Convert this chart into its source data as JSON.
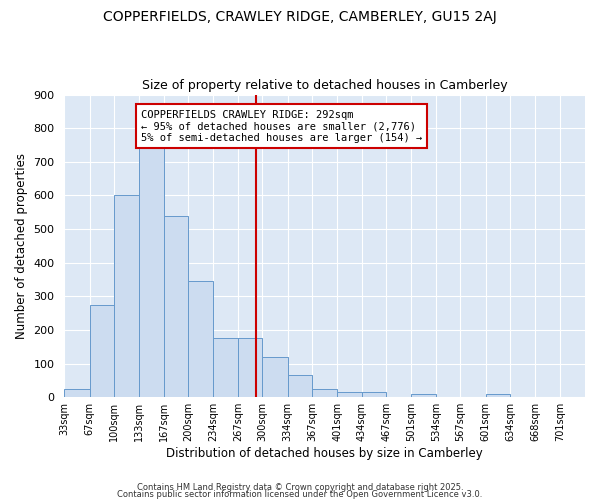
{
  "title1": "COPPERFIELDS, CRAWLEY RIDGE, CAMBERLEY, GU15 2AJ",
  "title2": "Size of property relative to detached houses in Camberley",
  "xlabel": "Distribution of detached houses by size in Camberley",
  "ylabel": "Number of detached properties",
  "bar_color": "#ccdcf0",
  "bar_edge_color": "#6699cc",
  "figure_bg": "#ffffff",
  "axes_bg": "#dde8f5",
  "grid_color": "#ffffff",
  "bin_labels": [
    "33sqm",
    "67sqm",
    "100sqm",
    "133sqm",
    "167sqm",
    "200sqm",
    "234sqm",
    "267sqm",
    "300sqm",
    "334sqm",
    "367sqm",
    "401sqm",
    "434sqm",
    "467sqm",
    "501sqm",
    "534sqm",
    "567sqm",
    "601sqm",
    "634sqm",
    "668sqm",
    "701sqm"
  ],
  "bin_edges": [
    33,
    67,
    100,
    133,
    167,
    200,
    234,
    267,
    300,
    334,
    367,
    401,
    434,
    467,
    501,
    534,
    567,
    601,
    634,
    668,
    701,
    735
  ],
  "bar_heights": [
    25,
    275,
    600,
    750,
    540,
    345,
    175,
    175,
    120,
    65,
    25,
    15,
    15,
    0,
    10,
    0,
    0,
    10,
    0,
    0,
    0
  ],
  "property_size": 292,
  "red_line_color": "#cc0000",
  "annotation_text": "COPPERFIELDS CRAWLEY RIDGE: 292sqm\n← 95% of detached houses are smaller (2,776)\n5% of semi-detached houses are larger (154) →",
  "annotation_box_facecolor": "#ffffff",
  "annotation_box_edgecolor": "#cc0000",
  "ylim": [
    0,
    900
  ],
  "yticks": [
    0,
    100,
    200,
    300,
    400,
    500,
    600,
    700,
    800,
    900
  ],
  "footnote1": "Contains HM Land Registry data © Crown copyright and database right 2025.",
  "footnote2": "Contains public sector information licensed under the Open Government Licence v3.0."
}
